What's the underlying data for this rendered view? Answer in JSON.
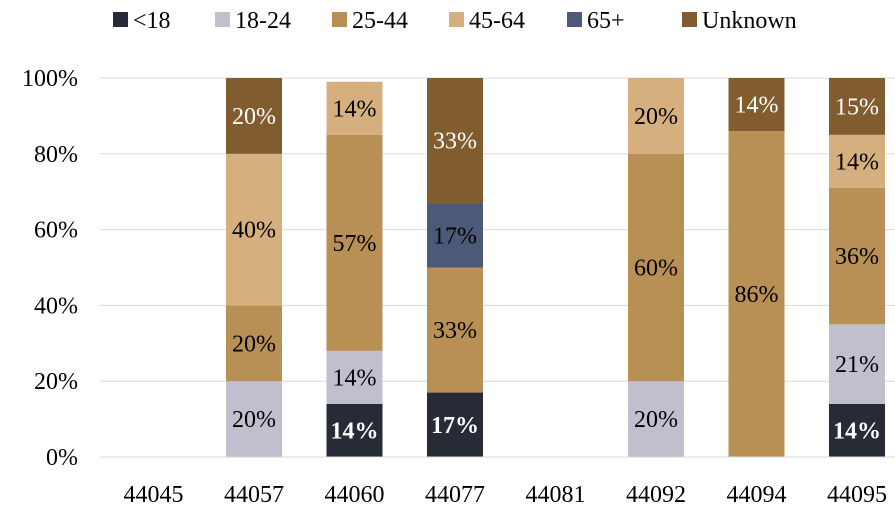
{
  "chart_data": {
    "type": "bar",
    "stacked": true,
    "percent": true,
    "categories": [
      "44045",
      "44057",
      "44060",
      "44077",
      "44081",
      "44092",
      "44094",
      "44095"
    ],
    "series": [
      {
        "name": "<18",
        "color": "#262B36",
        "values": [
          0,
          0,
          14,
          17,
          0,
          0,
          0,
          14
        ],
        "label_color": "#ffffff",
        "label_bold": true
      },
      {
        "name": "18-24",
        "color": "#C0BFCD",
        "values": [
          0,
          20,
          14,
          0,
          0,
          20,
          0,
          21
        ],
        "label_color": "#000000",
        "label_bold": false
      },
      {
        "name": "25-44",
        "color": "#B88F55",
        "values": [
          0,
          20,
          57,
          33,
          0,
          60,
          86,
          36
        ],
        "label_color": "#000000",
        "label_bold": false
      },
      {
        "name": "45-64",
        "color": "#D5AF7E",
        "values": [
          0,
          40,
          14,
          0,
          0,
          20,
          0,
          14
        ],
        "label_color": "#000000",
        "label_bold": false
      },
      {
        "name": "65+",
        "color": "#4D5978",
        "values": [
          0,
          0,
          0,
          17,
          0,
          0,
          0,
          0
        ],
        "label_color": "#000000",
        "label_bold": false
      },
      {
        "name": "Unknown",
        "color": "#805C2F",
        "values": [
          0,
          20,
          0,
          33,
          0,
          0,
          14,
          15
        ],
        "label_color": "#ffffff",
        "label_bold": false
      }
    ],
    "ylim": [
      0,
      100
    ],
    "yticks": [
      "0%",
      "20%",
      "40%",
      "60%",
      "80%",
      "100%"
    ],
    "grid": true,
    "legend": "top"
  }
}
